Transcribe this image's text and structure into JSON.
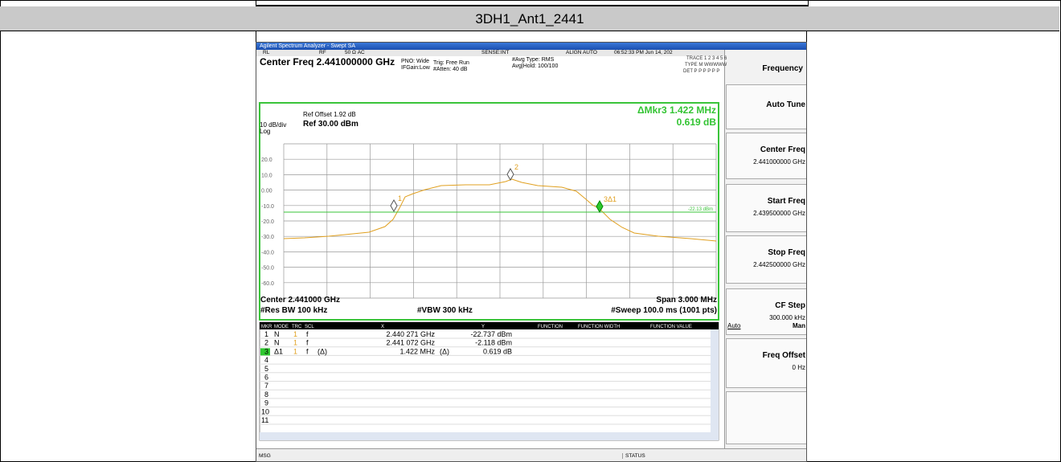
{
  "header": {
    "title": "3DH1_Ant1_2441"
  },
  "analyzer": {
    "window_title": "Agilent Spectrum Analyzer - Swept SA",
    "status_bar": [
      "RL",
      "RF",
      "50 Ω  AC",
      "SENSE:INT",
      "ALIGN AUTO",
      "06:52:33 PM Jun 14, 202"
    ],
    "center_freq": "Center Freq 2.441000000 GHz",
    "settings": [
      "PNO: Wide",
      "IFGain:Low",
      "Trig: Free Run",
      "#Atten: 40 dB",
      "#Avg Type: RMS",
      "Avg|Hold: 100/100"
    ],
    "trace_info": [
      "TRACE 1 2 3 4 5 6",
      "TYPE M WWWWW",
      "DET P P P P P P"
    ],
    "ref_offset": "Ref Offset 1.92 dB",
    "scale": "10 dB/div",
    "ref_level": "Ref 30.00 dBm",
    "log": "Log",
    "marker_readout": [
      "ΔMkr3 1.422 MHz",
      "0.619 dB"
    ],
    "y_labels": [
      "20.0",
      "10.0",
      "0.00",
      "-10.0",
      "-20.0",
      "-30.0",
      "-40.0",
      "-50.0",
      "-60.0"
    ],
    "markers": [
      "1",
      "2",
      "3Δ1"
    ],
    "display_line": "-22.13 dBm",
    "footer": [
      "Center 2.441000 GHz",
      "Span 3.000 MHz",
      "#Res BW 100 kHz",
      "#VBW 300 kHz",
      "#Sweep 100.0 ms (1001 pts)"
    ],
    "table": {
      "columns": [
        "MKR",
        "MODE",
        "TRC",
        "SCL",
        "X",
        "Y",
        "FUNCTION",
        "FUNCTION WIDTH",
        "FUNCTION VALUE"
      ],
      "rows": [
        {
          "mkr": "1",
          "mode": "N",
          "trc": "1",
          "scl": "f",
          "x": "2.440 271 GHz",
          "y": "-22.737 dBm"
        },
        {
          "mkr": "2",
          "mode": "N",
          "trc": "1",
          "scl": "f",
          "x": "2.441 072 GHz",
          "y": "-2.118 dBm"
        },
        {
          "mkr": "3",
          "mode": "Δ1",
          "trc": "1",
          "scl": "f",
          "x_ref": "(Δ)",
          "x": "1.422 MHz",
          "y_ref": "(Δ)",
          "y": "0.619 dB"
        },
        {
          "mkr": "4"
        },
        {
          "mkr": "5"
        },
        {
          "mkr": "6"
        },
        {
          "mkr": "7"
        },
        {
          "mkr": "8"
        },
        {
          "mkr": "9"
        },
        {
          "mkr": "10"
        },
        {
          "mkr": "11"
        }
      ]
    },
    "msg": "MSG",
    "status": "STATUS"
  },
  "softkeys": {
    "title": "Frequency",
    "keys": [
      {
        "label": "Auto Tune"
      },
      {
        "label": "Center Freq",
        "value": "2.441000000 GHz"
      },
      {
        "label": "Start Freq",
        "value": "2.439500000 GHz"
      },
      {
        "label": "Stop Freq",
        "value": "2.442500000 GHz"
      },
      {
        "label": "CF Step",
        "value": "300.000 kHz",
        "options": [
          "Auto",
          "Man"
        ]
      },
      {
        "label": "Freq Offset",
        "value": "0 Hz"
      }
    ]
  }
}
